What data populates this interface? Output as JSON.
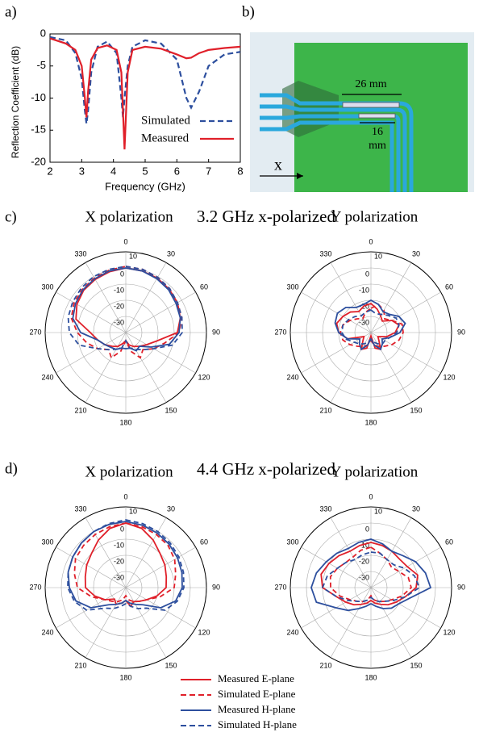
{
  "panel_labels": [
    "a)",
    "b)",
    "c)",
    "d)"
  ],
  "diagram": {
    "dimension_labels": [
      "26 mm",
      "16",
      "mm"
    ],
    "axis_label": "x"
  },
  "group_titles": [
    "3.2 GHz x-polarized",
    "4.4 GHz x-polarized"
  ],
  "legend": [
    {
      "name": "Measured E-plane",
      "color": "#e0202a",
      "linestyle": "solid"
    },
    {
      "name": "Simulated E-plane",
      "color": "#e0202a",
      "linestyle": "dashed"
    },
    {
      "name": "Measured H-plane",
      "color": "#2d4f9e",
      "linestyle": "solid"
    },
    {
      "name": "Simulated H-plane",
      "color": "#2d4f9e",
      "linestyle": "dashed"
    }
  ],
  "chart_data": [
    {
      "type": "line",
      "xlabel": "Frequency (GHz)",
      "ylabel": "Reflection Coefficient (dB)",
      "x": [
        2,
        2.5,
        2.8,
        3.0,
        3.1,
        3.15,
        3.2,
        3.3,
        3.5,
        3.8,
        4.1,
        4.25,
        4.3,
        4.35,
        4.45,
        4.6,
        5,
        5.5,
        6,
        6.3,
        6.45,
        6.7,
        7,
        7.5,
        8
      ],
      "series": [
        {
          "name": "Simulated",
          "color": "#2d4f9e",
          "linestyle": "dashed",
          "values": [
            -0.5,
            -1,
            -3,
            -7,
            -12,
            -14,
            -12,
            -6,
            -2,
            -1.2,
            -3,
            -10,
            -13,
            -10,
            -5,
            -2,
            -1,
            -1.5,
            -4,
            -10,
            -11.5,
            -9,
            -5,
            -3.2,
            -2.8
          ]
        },
        {
          "name": "Measured",
          "color": "#e0202a",
          "linestyle": "solid",
          "values": [
            -0.7,
            -1.5,
            -2.5,
            -5,
            -10,
            -13,
            -9,
            -4,
            -2.2,
            -1.8,
            -2.5,
            -6,
            -12,
            -18,
            -6,
            -2.5,
            -2,
            -2.3,
            -3.2,
            -3.8,
            -3.7,
            -3,
            -2.5,
            -2.2,
            -2
          ]
        }
      ],
      "xlim": [
        2,
        8
      ],
      "xticks": [
        2,
        3,
        4,
        5,
        6,
        7,
        8
      ],
      "ylim": [
        -20,
        0
      ],
      "yticks": [
        0,
        -5,
        -10,
        -15,
        -20
      ],
      "legend": "lower right"
    },
    {
      "type": "polar",
      "title": "X polarization",
      "angles": [
        0,
        15,
        30,
        45,
        60,
        75,
        90,
        105,
        120,
        135,
        150,
        165,
        180,
        195,
        210,
        225,
        240,
        255,
        270,
        285,
        300,
        315,
        330,
        345
      ],
      "thetaticks": [
        0,
        30,
        60,
        90,
        120,
        150,
        180,
        210,
        240,
        270,
        300,
        330
      ],
      "rlim": [
        -40,
        10
      ],
      "rticks": [
        10,
        0,
        -10,
        -20,
        -30
      ],
      "series": [
        {
          "color": "#e0202a",
          "linestyle": "solid",
          "values": [
            0,
            -0.5,
            -1,
            -2,
            -3,
            -5,
            -8,
            -20,
            -25,
            -28,
            -30,
            -32,
            -35,
            -33,
            -30,
            -28,
            -25,
            -22,
            -18,
            -8,
            -5,
            -3,
            -2,
            -1
          ]
        },
        {
          "color": "#e0202a",
          "linestyle": "dashed",
          "values": [
            1,
            0.5,
            -0.5,
            -1.5,
            -3,
            -4,
            -7,
            -15,
            -20,
            -25,
            -22,
            -28,
            -35,
            -28,
            -22,
            -25,
            -20,
            -15,
            -10,
            -5,
            -3,
            -2,
            -1,
            0
          ]
        },
        {
          "color": "#2d4f9e",
          "linestyle": "solid",
          "values": [
            0,
            -0.5,
            -1.5,
            -2.5,
            -4,
            -5,
            -7,
            -12,
            -22,
            -28,
            -27,
            -30,
            -30,
            -30,
            -28,
            -27,
            -25,
            -22,
            -12,
            -6,
            -4,
            -2.5,
            -1.5,
            -0.5
          ]
        },
        {
          "color": "#2d4f9e",
          "linestyle": "dashed",
          "values": [
            1,
            0.5,
            -0.5,
            -1.5,
            -3,
            -4,
            -5,
            -10,
            -20,
            -25,
            -28,
            -30,
            -35,
            -30,
            -28,
            -25,
            -20,
            -10,
            -5,
            -3,
            -2,
            -1,
            0,
            0.5
          ]
        }
      ]
    },
    {
      "type": "polar",
      "title": "Y polarization",
      "angles": [
        0,
        15,
        30,
        45,
        60,
        75,
        90,
        105,
        120,
        135,
        150,
        165,
        180,
        195,
        210,
        225,
        240,
        255,
        270,
        285,
        300,
        315,
        330,
        345
      ],
      "thetaticks": [
        0,
        30,
        60,
        90,
        120,
        150,
        180,
        210,
        240,
        270,
        300,
        330
      ],
      "rlim": [
        -40,
        10
      ],
      "rticks": [
        10,
        0,
        -10,
        -20,
        -30
      ],
      "series": [
        {
          "color": "#e0202a",
          "linestyle": "solid",
          "values": [
            -22,
            -25,
            -28,
            -30,
            -25,
            -22,
            -25,
            -30,
            -35,
            -33,
            -28,
            -30,
            -38,
            -30,
            -28,
            -33,
            -35,
            -25,
            -20,
            -18,
            -20,
            -22,
            -25,
            -23
          ]
        },
        {
          "color": "#e0202a",
          "linestyle": "dashed",
          "values": [
            -25,
            -22,
            -24,
            -28,
            -25,
            -20,
            -20,
            -22,
            -25,
            -28,
            -30,
            -32,
            -35,
            -32,
            -30,
            -28,
            -25,
            -22,
            -21,
            -22,
            -25,
            -28,
            -30,
            -27
          ]
        },
        {
          "color": "#2d4f9e",
          "linestyle": "solid",
          "values": [
            -20,
            -22,
            -25,
            -24,
            -20,
            -18,
            -22,
            -28,
            -32,
            -30,
            -28,
            -32,
            -36,
            -32,
            -28,
            -30,
            -32,
            -25,
            -20,
            -17,
            -16,
            -18,
            -22,
            -22
          ]
        },
        {
          "color": "#2d4f9e",
          "linestyle": "dashed",
          "values": [
            -26,
            -28,
            -27,
            -25,
            -22,
            -22,
            -24,
            -28,
            -30,
            -30,
            -32,
            -34,
            -36,
            -34,
            -32,
            -30,
            -28,
            -24,
            -22,
            -22,
            -24,
            -26,
            -28,
            -27
          ]
        }
      ]
    },
    {
      "type": "polar",
      "title": "X polarization",
      "angles": [
        0,
        15,
        30,
        45,
        60,
        75,
        90,
        105,
        120,
        135,
        150,
        165,
        180,
        195,
        210,
        225,
        240,
        255,
        270,
        285,
        300,
        315,
        330,
        345
      ],
      "thetaticks": [
        0,
        30,
        60,
        90,
        120,
        150,
        180,
        210,
        240,
        270,
        300,
        330
      ],
      "rlim": [
        -40,
        10
      ],
      "rticks": [
        10,
        0,
        -10,
        -20,
        -30
      ],
      "series": [
        {
          "color": "#e0202a",
          "linestyle": "solid",
          "values": [
            0,
            -2,
            -6,
            -10,
            -12,
            -14,
            -15,
            -20,
            -25,
            -28,
            -30,
            -28,
            -32,
            -30,
            -28,
            -30,
            -25,
            -20,
            -15,
            -14,
            -12,
            -10,
            -6,
            -2
          ]
        },
        {
          "color": "#e0202a",
          "linestyle": "dashed",
          "values": [
            0,
            -1,
            -2,
            -3,
            -5,
            -8,
            -10,
            -18,
            -25,
            -28,
            -30,
            -32,
            -35,
            -32,
            -30,
            -28,
            -25,
            -18,
            -10,
            -7,
            -4,
            -3,
            -2,
            -1
          ]
        },
        {
          "color": "#2d4f9e",
          "linestyle": "solid",
          "values": [
            1,
            0,
            -1,
            -2,
            -3,
            -4,
            -5,
            -8,
            -15,
            -25,
            -28,
            -30,
            -32,
            -30,
            -28,
            -25,
            -15,
            -8,
            -5,
            -3,
            -2,
            -1,
            0,
            0.5
          ]
        },
        {
          "color": "#2d4f9e",
          "linestyle": "dashed",
          "values": [
            2,
            1,
            0,
            -1,
            -2,
            -3,
            -4,
            -7,
            -12,
            -22,
            -25,
            -28,
            -30,
            -28,
            -25,
            -22,
            -12,
            -7,
            -4,
            -3,
            -2,
            -1,
            0,
            1
          ]
        }
      ]
    },
    {
      "type": "polar",
      "title": "Y polarization",
      "angles": [
        0,
        15,
        30,
        45,
        60,
        75,
        90,
        105,
        120,
        135,
        150,
        165,
        180,
        195,
        210,
        225,
        240,
        255,
        270,
        285,
        300,
        315,
        330,
        345
      ],
      "thetaticks": [
        0,
        30,
        60,
        90,
        120,
        150,
        180,
        210,
        240,
        270,
        300,
        330
      ],
      "rlim": [
        -40,
        10
      ],
      "rticks": [
        10,
        0,
        -10,
        -20,
        -30
      ],
      "series": [
        {
          "color": "#e0202a",
          "linestyle": "solid",
          "values": [
            -12,
            -13,
            -14,
            -15,
            -14,
            -10,
            -12,
            -18,
            -22,
            -25,
            -28,
            -30,
            -32,
            -30,
            -28,
            -25,
            -22,
            -18,
            -10,
            -8,
            -10,
            -12,
            -14,
            -13
          ]
        },
        {
          "color": "#e0202a",
          "linestyle": "dashed",
          "values": [
            -15,
            -18,
            -20,
            -22,
            -20,
            -16,
            -15,
            -20,
            -25,
            -28,
            -30,
            -32,
            -35,
            -32,
            -30,
            -28,
            -25,
            -20,
            -15,
            -14,
            -16,
            -18,
            -18,
            -16
          ]
        },
        {
          "color": "#2d4f9e",
          "linestyle": "solid",
          "values": [
            -10,
            -12,
            -14,
            -12,
            -8,
            -5,
            -3,
            -15,
            -20,
            -22,
            -25,
            -28,
            -30,
            -28,
            -25,
            -20,
            -15,
            -5,
            -3,
            -5,
            -8,
            -10,
            -12,
            -11
          ]
        },
        {
          "color": "#2d4f9e",
          "linestyle": "dashed",
          "values": [
            -18,
            -18,
            -20,
            -20,
            -16,
            -12,
            -10,
            -18,
            -24,
            -28,
            -30,
            -32,
            -34,
            -32,
            -30,
            -28,
            -24,
            -18,
            -10,
            -12,
            -16,
            -18,
            -20,
            -19
          ]
        }
      ]
    }
  ]
}
